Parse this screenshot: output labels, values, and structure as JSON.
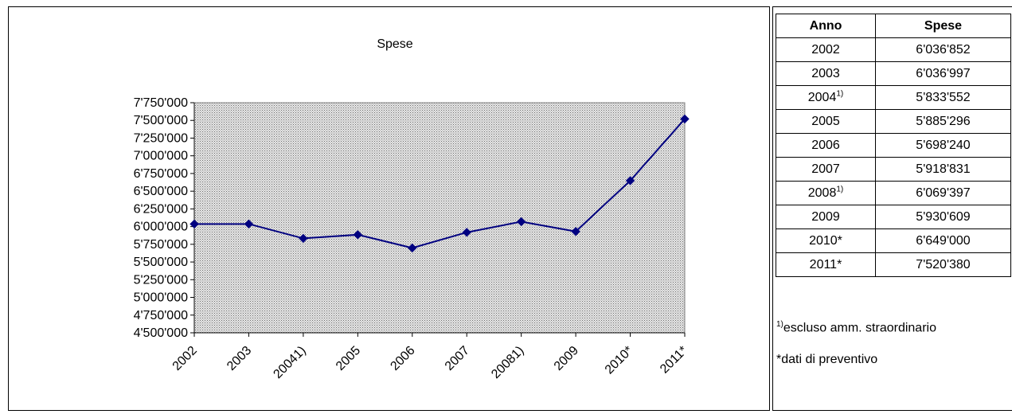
{
  "chart_data": {
    "type": "line",
    "title": "Spese",
    "categories": [
      "2002",
      "2003",
      "20041)",
      "2005",
      "2006",
      "2007",
      "20081)",
      "2009",
      "2010*",
      "2011*"
    ],
    "values": [
      6036852,
      6036997,
      5833552,
      5885296,
      5698240,
      5918831,
      6069397,
      5930609,
      6649000,
      7520380
    ],
    "ylim": [
      4500000,
      7750000
    ],
    "y_tick_values": [
      4500000,
      4750000,
      5000000,
      5250000,
      5500000,
      5750000,
      6000000,
      6250000,
      6500000,
      6750000,
      7000000,
      7250000,
      7500000,
      7750000
    ],
    "y_tick_labels": [
      "4'500'000",
      "4'750'000",
      "5'000'000",
      "5'250'000",
      "5'500'000",
      "5'750'000",
      "6'000'000",
      "6'250'000",
      "6'500'000",
      "6'750'000",
      "7'000'000",
      "7'250'000",
      "7'500'000",
      "7'750'000"
    ],
    "grid": false,
    "colors": {
      "line": "#000080",
      "marker": "#000080",
      "plot_background": "#c0c0c0"
    }
  },
  "table": {
    "headers": [
      "Anno",
      "Spese"
    ],
    "rows": [
      {
        "year": "2002",
        "sup": "",
        "value": "6'036'852"
      },
      {
        "year": "2003",
        "sup": "",
        "value": "6'036'997"
      },
      {
        "year": "2004",
        "sup": "1)",
        "value": "5'833'552"
      },
      {
        "year": "2005",
        "sup": "",
        "value": "5'885'296"
      },
      {
        "year": "2006",
        "sup": "",
        "value": "5'698'240"
      },
      {
        "year": "2007",
        "sup": "",
        "value": "5'918'831"
      },
      {
        "year": "2008",
        "sup": "1)",
        "value": "6'069'397"
      },
      {
        "year": "2009",
        "sup": "",
        "value": "5'930'609"
      },
      {
        "year": "2010*",
        "sup": "",
        "value": "6'649'000"
      },
      {
        "year": "2011*",
        "sup": "",
        "value": "7'520'380"
      }
    ]
  },
  "notes": {
    "note1_sup": "1)",
    "note1_text": "escluso amm. straordinario",
    "note2_text": "*dati di preventivo"
  }
}
